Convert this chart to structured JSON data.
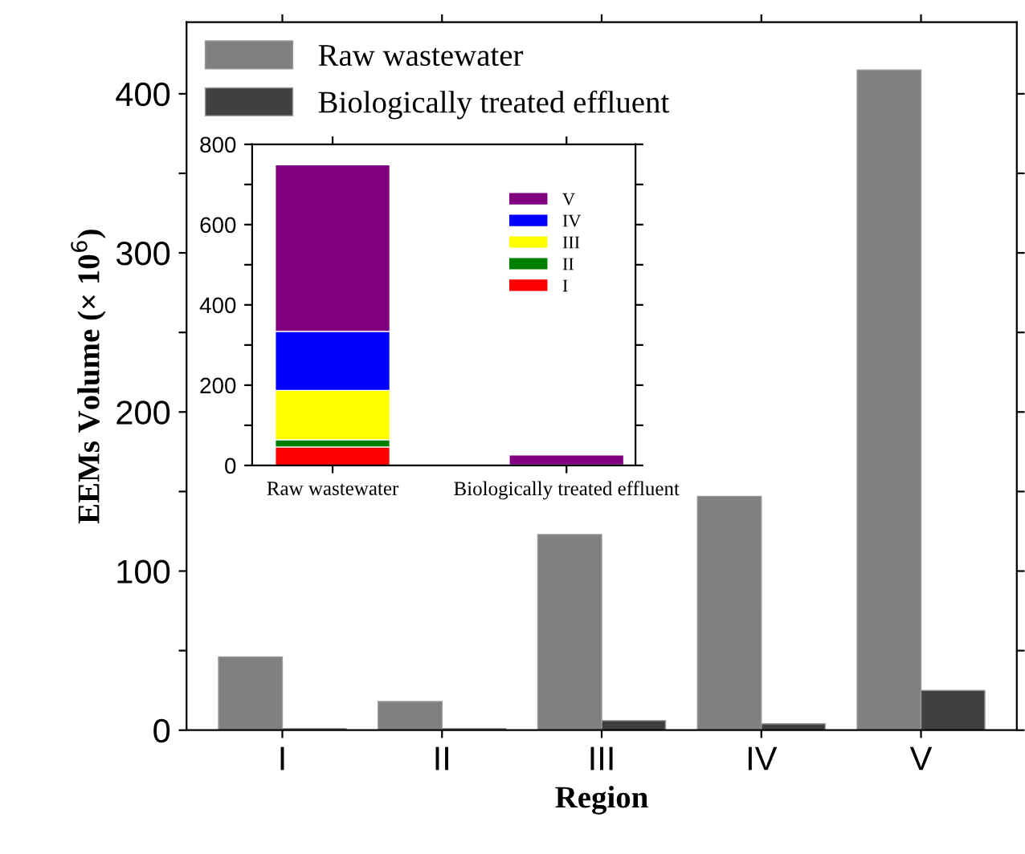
{
  "chart_data": [
    {
      "type": "bar",
      "xlabel": "Region",
      "ylabel": "EEMs Volume (× 10$^{6}$)",
      "categories": [
        "I",
        "II",
        "III",
        "IV",
        "V"
      ],
      "series": [
        {
          "name": "Raw wastewater",
          "color": "#808080",
          "values": [
            46,
            18,
            123,
            147,
            415
          ]
        },
        {
          "name": "Biologically treated effluent",
          "color": "#404040",
          "values": [
            1,
            1,
            6,
            4,
            25
          ]
        }
      ],
      "ylim": [
        0,
        445
      ],
      "yticks": [
        0,
        {
          "value": 50,
          "label": null
        },
        100,
        {
          "value": 150,
          "label": null
        },
        200,
        {
          "value": 250,
          "label": null
        },
        300,
        {
          "value": 350,
          "label": null
        },
        400
      ],
      "grid": false,
      "legend": "top left"
    },
    {
      "type": "bar",
      "stacked": true,
      "categories": [
        "Raw wastewater",
        "Biologically treated effluent"
      ],
      "series": [
        {
          "name": "I",
          "color": "#ff0000",
          "values": [
            46,
            null
          ]
        },
        {
          "name": "II",
          "color": "#008000",
          "values": [
            18,
            1
          ]
        },
        {
          "name": "III",
          "color": "#ffff00",
          "values": [
            123,
            null
          ]
        },
        {
          "name": "IV",
          "color": "#0000ff",
          "values": [
            147,
            null
          ]
        },
        {
          "name": "V",
          "color": "#800080",
          "values": [
            415,
            25
          ]
        }
      ],
      "ylim": [
        0,
        800
      ],
      "yticks": [
        0,
        {
          "value": 100,
          "label": null
        },
        200,
        {
          "value": 300,
          "label": null
        },
        400,
        {
          "value": 500,
          "label": null
        },
        600,
        {
          "value": 700,
          "label": null
        },
        800
      ],
      "grid": false,
      "legend": "top right"
    }
  ]
}
